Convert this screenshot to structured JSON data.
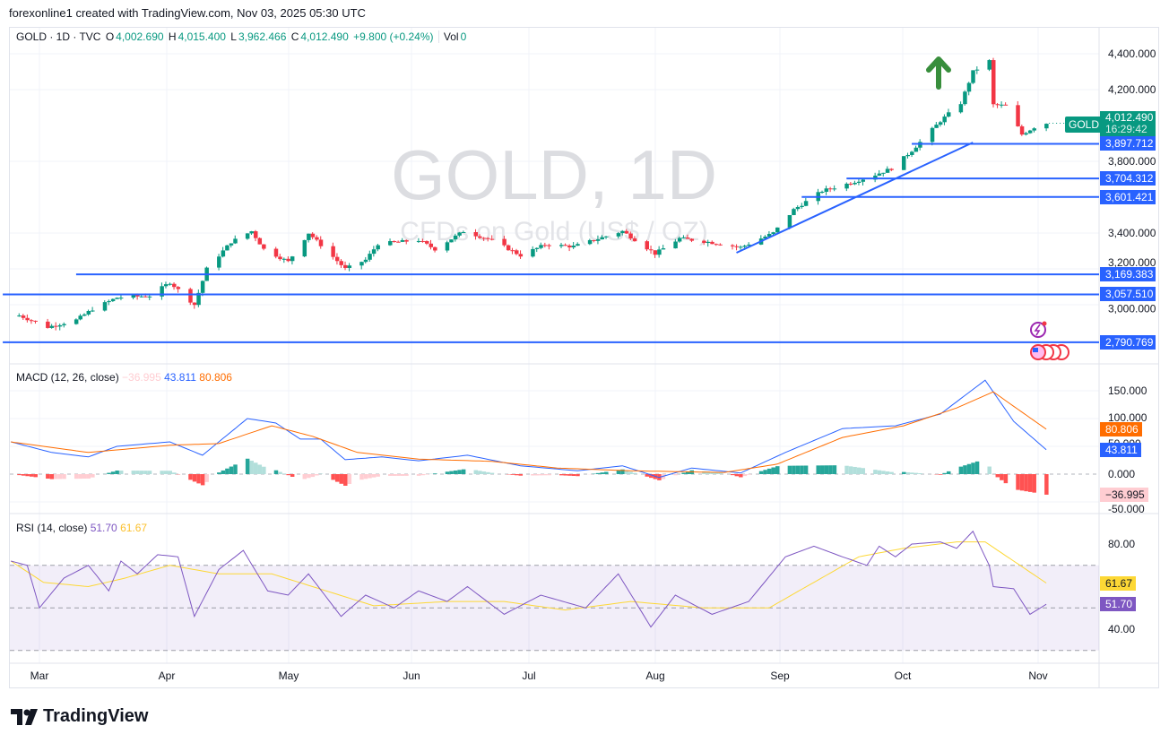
{
  "credit": "forexonline1 created with TradingView.com, Nov 03, 2025 05:30 UTC",
  "legend": {
    "symbol": "GOLD · 1D · TVC",
    "o_label": "O",
    "o": "4,002.690",
    "h_label": "H",
    "h": "4,015.400",
    "l_label": "L",
    "l": "3,962.466",
    "c_label": "C",
    "c": "4,012.490",
    "change": "+9.800 (+0.24%)",
    "vol_label": "Vol",
    "vol": "0"
  },
  "watermark": {
    "title": "GOLD, 1D",
    "subtitle": "CFDs on Gold (US$ / OZ)"
  },
  "price_badge": {
    "symbol": "GOLD",
    "price": "4,012.490",
    "countdown": "16:29:42"
  },
  "macd_legend": {
    "title": "MACD (12, 26, close)",
    "hist": "−36.995",
    "macd": "43.811",
    "signal": "80.806"
  },
  "rsi_legend": {
    "title": "RSI (14, close)",
    "rsi": "51.70",
    "ma": "61.67"
  },
  "brand": "TradingView",
  "colors": {
    "up": "#089981",
    "down": "#f23645",
    "drawing": "#2962ff",
    "macd": "#2962ff",
    "signal": "#ff6d00",
    "rsi": "#7e57c2",
    "rsi_ma": "#fdd835",
    "arrow": "#388e3c"
  },
  "chart_data": [
    {
      "type": "candlestick",
      "title": "GOLD · 1D · TVC",
      "x_ticks": [
        "Mar",
        "Apr",
        "May",
        "Jun",
        "Jul",
        "Aug",
        "Sep",
        "Oct",
        "Nov"
      ],
      "y_ticks": [
        "4,400.000",
        "4,200.000",
        "3,800.000",
        "3,400.000",
        "3,200.000",
        "3,000.000"
      ],
      "ylim": [
        2740,
        4480
      ],
      "close_keypoints": [
        [
          "02-24",
          2940
        ],
        [
          "03-03",
          2875
        ],
        [
          "03-10",
          2915
        ],
        [
          "03-14",
          2975
        ],
        [
          "03-20",
          3040
        ],
        [
          "03-28",
          3050
        ],
        [
          "04-02",
          3125
        ],
        [
          "04-08",
          3000
        ],
        [
          "04-11",
          3200
        ],
        [
          "04-17",
          3350
        ],
        [
          "04-22",
          3410
        ],
        [
          "04-25",
          3310
        ],
        [
          "05-01",
          3240
        ],
        [
          "05-06",
          3400
        ],
        [
          "05-15",
          3200
        ],
        [
          "05-20",
          3250
        ],
        [
          "05-23",
          3340
        ],
        [
          "06-02",
          3360
        ],
        [
          "06-06",
          3310
        ],
        [
          "06-13",
          3410
        ],
        [
          "06-20",
          3360
        ],
        [
          "06-27",
          3275
        ],
        [
          "07-03",
          3335
        ],
        [
          "07-10",
          3325
        ],
        [
          "07-22",
          3410
        ],
        [
          "07-30",
          3285
        ],
        [
          "08-05",
          3370
        ],
        [
          "08-12",
          3350
        ],
        [
          "08-20",
          3320
        ],
        [
          "08-28",
          3400
        ],
        [
          "09-02",
          3530
        ],
        [
          "09-09",
          3635
        ],
        [
          "09-16",
          3680
        ],
        [
          "09-22",
          3725
        ],
        [
          "09-26",
          3760
        ],
        [
          "10-01",
          3860
        ],
        [
          "10-08",
          4025
        ],
        [
          "10-13",
          4125
        ],
        [
          "10-16",
          4300
        ],
        [
          "10-20",
          4360
        ],
        [
          "10-21",
          4115
        ],
        [
          "10-24",
          4110
        ],
        [
          "10-28",
          3950
        ],
        [
          "10-31",
          3990
        ],
        [
          "11-03",
          4012.49
        ]
      ],
      "horizontal_levels": [
        {
          "price": 3897.712,
          "label": "3,897.712",
          "from": "10-01"
        },
        {
          "price": 3704.312,
          "label": "3,704.312",
          "from": "09-15"
        },
        {
          "price": 3601.421,
          "label": "3,601.421",
          "from": "09-04"
        },
        {
          "price": 3169.383,
          "label": "3,169.383",
          "from": "03-10"
        },
        {
          "price": 3057.51,
          "label": "3,057.510",
          "from": "02-20"
        },
        {
          "price": 2790.769,
          "label": "2,790.769",
          "from": "02-20"
        }
      ],
      "trend_line": [
        [
          "08-19",
          3290
        ],
        [
          "10-16",
          3905
        ]
      ]
    },
    {
      "type": "line",
      "title": "MACD (12, 26, close)",
      "y_ticks": [
        "150.000",
        "100.000",
        "50.000",
        "0.000",
        "-50.000"
      ],
      "ylim": [
        -62,
        175
      ],
      "macd_keypoints": [
        [
          "02-22",
          58
        ],
        [
          "03-04",
          39
        ],
        [
          "03-13",
          31
        ],
        [
          "03-20",
          50
        ],
        [
          "04-02",
          58
        ],
        [
          "04-10",
          34
        ],
        [
          "04-21",
          100
        ],
        [
          "04-28",
          92
        ],
        [
          "05-04",
          63
        ],
        [
          "05-09",
          63
        ],
        [
          "05-15",
          26
        ],
        [
          "05-24",
          31
        ],
        [
          "06-02",
          24
        ],
        [
          "06-14",
          34
        ],
        [
          "06-27",
          15
        ],
        [
          "07-11",
          6
        ],
        [
          "07-22",
          15
        ],
        [
          "07-31",
          -6
        ],
        [
          "08-08",
          11
        ],
        [
          "08-20",
          2
        ],
        [
          "08-31",
          39
        ],
        [
          "09-14",
          82
        ],
        [
          "09-27",
          87
        ],
        [
          "10-08",
          108
        ],
        [
          "10-19",
          169
        ],
        [
          "10-26",
          95
        ],
        [
          "11-03",
          43.811
        ]
      ],
      "signal_keypoints": [
        [
          "02-22",
          58
        ],
        [
          "03-13",
          39
        ],
        [
          "04-02",
          52
        ],
        [
          "04-14",
          55
        ],
        [
          "04-27",
          87
        ],
        [
          "05-07",
          68
        ],
        [
          "05-18",
          39
        ],
        [
          "06-02",
          27
        ],
        [
          "06-20",
          23
        ],
        [
          "07-06",
          11
        ],
        [
          "07-24",
          6
        ],
        [
          "08-16",
          3
        ],
        [
          "08-29",
          18
        ],
        [
          "09-14",
          66
        ],
        [
          "09-29",
          87
        ],
        [
          "10-12",
          119
        ],
        [
          "10-21",
          148
        ],
        [
          "11-03",
          80.806
        ]
      ]
    },
    {
      "type": "line",
      "title": "RSI (14, close)",
      "y_ticks": [
        "80.00",
        "40.00"
      ],
      "ylim": [
        20,
        92
      ],
      "bands": [
        30,
        50,
        70
      ],
      "rsi_keypoints": [
        [
          "02-22",
          72
        ],
        [
          "02-26",
          70
        ],
        [
          "03-01",
          50
        ],
        [
          "03-07",
          64
        ],
        [
          "03-13",
          70
        ],
        [
          "03-18",
          58
        ],
        [
          "03-21",
          72
        ],
        [
          "03-25",
          66
        ],
        [
          "03-30",
          75
        ],
        [
          "04-04",
          74
        ],
        [
          "04-08",
          46
        ],
        [
          "04-14",
          68
        ],
        [
          "04-20",
          77
        ],
        [
          "04-26",
          58
        ],
        [
          "05-01",
          56
        ],
        [
          "05-06",
          66
        ],
        [
          "05-14",
          46
        ],
        [
          "05-20",
          56
        ],
        [
          "05-27",
          50
        ],
        [
          "06-02",
          58
        ],
        [
          "06-09",
          53
        ],
        [
          "06-14",
          60
        ],
        [
          "06-23",
          47
        ],
        [
          "07-02",
          56
        ],
        [
          "07-13",
          50
        ],
        [
          "07-21",
          66
        ],
        [
          "07-29",
          41
        ],
        [
          "08-04",
          56
        ],
        [
          "08-13",
          47
        ],
        [
          "08-22",
          53
        ],
        [
          "08-31",
          74
        ],
        [
          "09-07",
          79
        ],
        [
          "09-14",
          74
        ],
        [
          "09-20",
          70
        ],
        [
          "09-23",
          79
        ],
        [
          "09-27",
          74
        ],
        [
          "10-01",
          80
        ],
        [
          "10-08",
          81
        ],
        [
          "10-12",
          78
        ],
        [
          "10-16",
          86
        ],
        [
          "10-20",
          70
        ],
        [
          "10-21",
          60
        ],
        [
          "10-26",
          59
        ],
        [
          "10-30",
          47
        ],
        [
          "11-03",
          51.7
        ]
      ],
      "ma_keypoints": [
        [
          "02-22",
          72
        ],
        [
          "03-02",
          62
        ],
        [
          "03-13",
          60
        ],
        [
          "03-22",
          64
        ],
        [
          "04-02",
          70
        ],
        [
          "04-14",
          66
        ],
        [
          "04-27",
          66
        ],
        [
          "05-07",
          60
        ],
        [
          "05-22",
          51
        ],
        [
          "06-09",
          53
        ],
        [
          "06-23",
          53
        ],
        [
          "07-08",
          49
        ],
        [
          "07-24",
          53
        ],
        [
          "08-11",
          50
        ],
        [
          "08-27",
          50
        ],
        [
          "09-07",
          62
        ],
        [
          "09-18",
          74
        ],
        [
          "09-29",
          78
        ],
        [
          "10-12",
          81
        ],
        [
          "10-19",
          81
        ],
        [
          "10-26",
          72
        ],
        [
          "11-03",
          61.67
        ]
      ]
    }
  ]
}
